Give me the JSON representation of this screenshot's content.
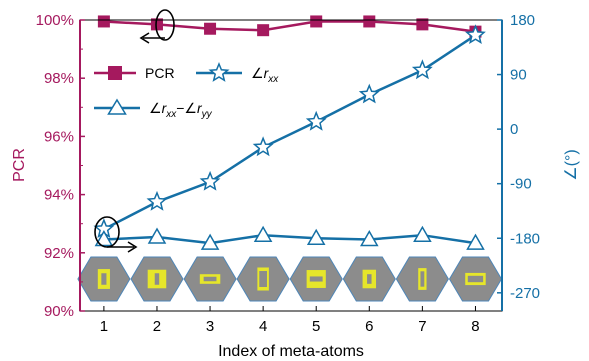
{
  "chart_data": {
    "type": "line",
    "xlabel": "Index of meta-atoms",
    "ylabel_left": "PCR",
    "ylabel_right": "∠(°)",
    "x": [
      1,
      2,
      3,
      4,
      5,
      6,
      7,
      8
    ],
    "xlim": [
      0.55,
      8.5
    ],
    "ylim_left": [
      90,
      100
    ],
    "ylim_right": [
      -300,
      180
    ],
    "yticks_left": [
      "90%",
      "92%",
      "94%",
      "96%",
      "98%",
      "100%"
    ],
    "yticks_left_values": [
      90,
      92,
      94,
      96,
      98,
      100
    ],
    "yticks_right": [
      "-270",
      "-180",
      "-90",
      "0",
      "90",
      "180"
    ],
    "yticks_right_values": [
      -270,
      -180,
      -90,
      0,
      90,
      180
    ],
    "xticks": [
      "1",
      "2",
      "3",
      "4",
      "5",
      "6",
      "7",
      "8"
    ],
    "colors": {
      "left": "#a5195e",
      "right": "#1570a6",
      "cell": "#8c8c8c",
      "bar": "#e6e62a"
    },
    "series": [
      {
        "name": "PCR",
        "axis": "left",
        "marker": "square",
        "values": [
          99.95,
          99.85,
          99.7,
          99.65,
          99.95,
          99.95,
          99.85,
          99.6
        ]
      },
      {
        "name": "∠rxx",
        "axis": "right",
        "marker": "star",
        "values": [
          -165,
          -120,
          -87,
          -30,
          12,
          57,
          97,
          155
        ]
      },
      {
        "name": "∠rxx−∠ryy",
        "axis": "right",
        "marker": "triangle",
        "values": [
          -182,
          -178,
          -188,
          -175,
          -180,
          -182,
          -175,
          -188
        ]
      }
    ],
    "legend": {
      "pcr": "PCR",
      "rxx_angle": "∠",
      "rxx_r": "r",
      "rxx_sub": "xx",
      "diff_angle1": "∠",
      "diff_r1": "r",
      "diff_sub1": "xx",
      "diff_minus": "−∠",
      "diff_r2": "r",
      "diff_sub2": "yy"
    },
    "meta_atoms": [
      {
        "outer_w": 0.38,
        "outer_h": 0.62,
        "inner_w": 0.16,
        "inner_h": 0.36
      },
      {
        "outer_w": 0.58,
        "outer_h": 0.58,
        "inner_w": 0.14,
        "inner_h": 0.36
      },
      {
        "outer_w": 0.64,
        "outer_h": 0.3,
        "inner_w": 0.4,
        "inner_h": 0.14
      },
      {
        "outer_w": 0.36,
        "outer_h": 0.72,
        "inner_w": 0.24,
        "inner_h": 0.5
      },
      {
        "outer_w": 0.6,
        "outer_h": 0.56,
        "inner_w": 0.4,
        "inner_h": 0.16
      },
      {
        "outer_w": 0.42,
        "outer_h": 0.58,
        "inner_w": 0.14,
        "inner_h": 0.3
      },
      {
        "outer_w": 0.26,
        "outer_h": 0.68,
        "inner_w": 0.12,
        "inner_h": 0.48
      },
      {
        "outer_w": 0.64,
        "outer_h": 0.38,
        "inner_w": 0.48,
        "inner_h": 0.2
      }
    ]
  }
}
